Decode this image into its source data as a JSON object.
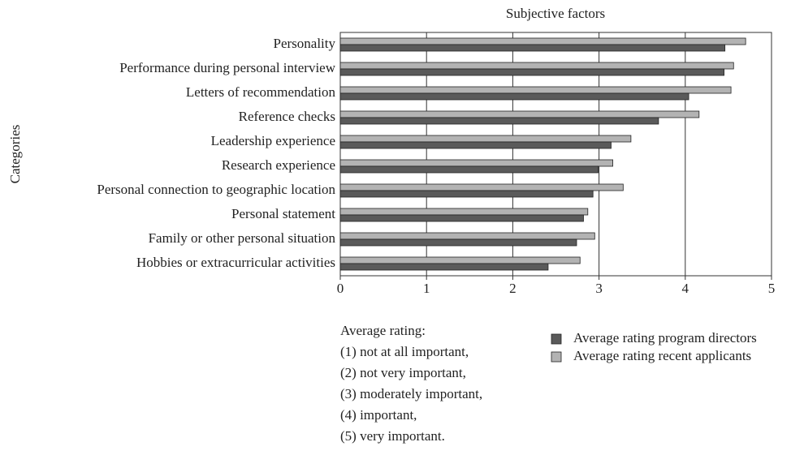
{
  "chart_data": {
    "type": "bar",
    "orientation": "horizontal",
    "title": "Subjective factors",
    "y_label": "Categories",
    "categories": [
      "Personality",
      "Performance during personal interview",
      "Letters of recommendation",
      "Reference checks",
      "Leadership experience",
      "Research experience",
      "Personal connection to geographic location",
      "Personal statement",
      "Family or other personal situation",
      "Hobbies or extracurricular activities"
    ],
    "series": [
      {
        "name": "Average rating recent applicants",
        "color": "#b3b3b3",
        "values": [
          4.7,
          4.56,
          4.53,
          4.16,
          3.37,
          3.16,
          3.28,
          2.87,
          2.95,
          2.78
        ]
      },
      {
        "name": "Average rating program directors",
        "color": "#5a5a5a",
        "values": [
          4.46,
          4.45,
          4.04,
          3.69,
          3.14,
          2.99,
          2.93,
          2.82,
          2.74,
          2.41
        ]
      }
    ],
    "xlim": [
      0,
      5
    ],
    "xticks": [
      0,
      1,
      2,
      3,
      4,
      5
    ],
    "grid": true,
    "annotations": [
      "Average rating:",
      "(1)  not at all important,",
      "(2)  not very important,",
      "(3)  moderately important,",
      "(4)  important,",
      "(5)  very important."
    ]
  }
}
